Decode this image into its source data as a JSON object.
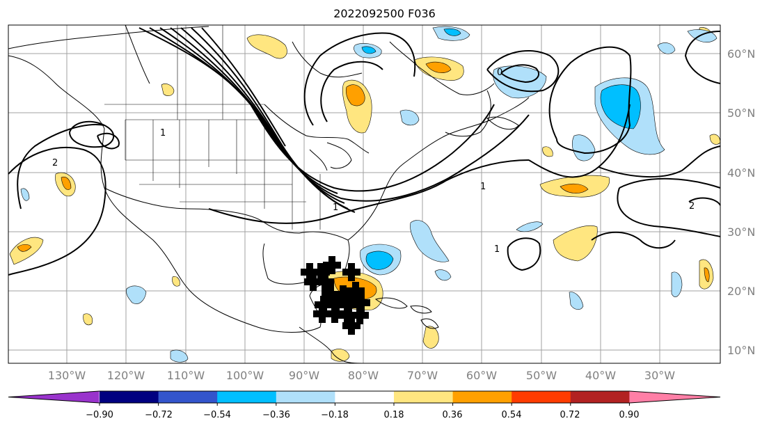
{
  "title": "2022092500 F036",
  "lon_labels": [
    "130°W",
    "120°W",
    "110°W",
    "100°W",
    "90°W",
    "80°W",
    "70°W",
    "60°W",
    "50°W",
    "40°W",
    "30°W"
  ],
  "lat_labels": [
    "60°N",
    "50°N",
    "40°N",
    "30°N",
    "20°N",
    "10°N"
  ],
  "colorbar": {
    "ticks": [
      "−0.90",
      "−0.72",
      "−0.54",
      "−0.36",
      "−0.18",
      "0.18",
      "0.36",
      "0.54",
      "0.72",
      "0.90"
    ],
    "colors": [
      "#9933cc",
      "#000080",
      "#3355cc",
      "#00bfff",
      "#b0e0fa",
      "#ffffff",
      "#ffe680",
      "#ffa000",
      "#ff3c00",
      "#b22222",
      "#ff7fa6"
    ]
  },
  "contour_labels": [
    "2",
    "1",
    "1",
    "1",
    "1",
    "2",
    "0"
  ],
  "colors": {
    "light_blue": "#b0e0fa",
    "blue": "#00bfff",
    "yellow": "#ffe680",
    "orange": "#ffa000"
  }
}
